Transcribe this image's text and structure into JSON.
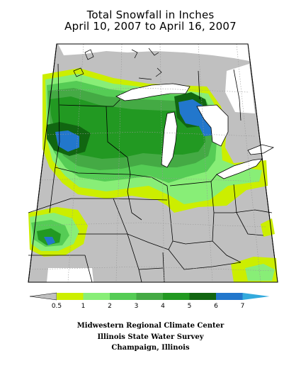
{
  "title": {
    "line1": "Total Snowfall in Inches",
    "line2": "April 10, 2007 to April 16, 2007"
  },
  "legend": {
    "unit": "inches",
    "ticks": [
      "0.5",
      "1",
      "2",
      "3",
      "4",
      "5",
      "6",
      "7"
    ],
    "colors": {
      "below": "#c0c0c0",
      "bins": [
        "#ccee00",
        "#88ee77",
        "#55cc55",
        "#44aa44",
        "#229922",
        "#116611",
        "#2277cc"
      ],
      "above": "#33aadd"
    }
  },
  "credits": {
    "line1": "Midwestern Regional Climate Center",
    "line2": "Illinois State Water Survey",
    "line3": "Champaign, Illinois"
  },
  "map_colors": {
    "land_low": "#c0c0c0",
    "water": "#ffffff",
    "outline": "#000000",
    "grid": "#999999"
  }
}
